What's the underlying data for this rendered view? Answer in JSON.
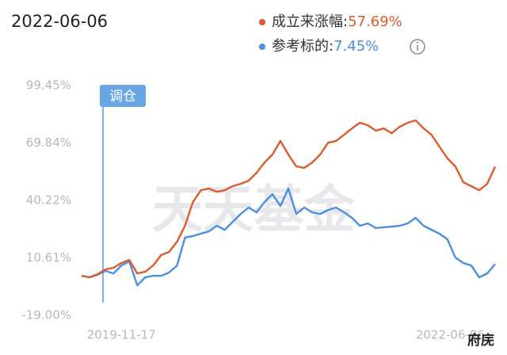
{
  "chart_data": {
    "type": "line",
    "date": "2022-06-06",
    "annotation": "调仓",
    "watermark": "天天基金",
    "signature": "府庑",
    "categories": [
      null,
      null,
      null,
      null,
      null,
      "2019-11-17",
      null,
      null,
      null,
      null,
      null,
      null,
      null,
      null,
      null,
      null,
      null,
      null,
      null,
      null,
      null,
      null,
      null,
      null,
      null,
      null,
      null,
      null,
      null,
      null,
      null,
      null,
      null,
      null,
      null,
      null,
      null,
      null,
      null,
      null,
      null,
      null,
      null,
      null,
      null,
      null,
      null,
      null,
      null,
      null,
      null,
      null,
      "2022-06-06"
    ],
    "series": [
      {
        "name": "成立来涨幅:",
        "value_label": "57.69%",
        "color": "#e05a2b",
        "values": [
          1.4,
          0.6,
          2.2,
          4.7,
          5.5,
          8,
          9.6,
          2.6,
          3.5,
          6.7,
          12.1,
          13.7,
          19,
          27.2,
          39.4,
          45.5,
          46.4,
          44.7,
          45.5,
          47.6,
          48.8,
          50.4,
          54.5,
          59.8,
          63.9,
          70.9,
          63.9,
          57.8,
          57,
          59.8,
          63.9,
          70,
          70.9,
          74.1,
          77.4,
          80.3,
          79,
          76.2,
          77.4,
          74.9,
          78.2,
          80.3,
          81.5,
          77.4,
          74.1,
          68,
          61.9,
          57.8,
          49.6,
          47.6,
          45.5,
          48.8,
          57.69
        ]
      },
      {
        "name": "参考标的:",
        "value_label": "7.45%",
        "color": "#4a8fe0",
        "values": [
          1.4,
          0.6,
          1.9,
          3.9,
          2.6,
          6.7,
          8.8,
          -3.5,
          0.6,
          1.4,
          1.4,
          3.1,
          6.7,
          21.1,
          21.9,
          23.1,
          24.3,
          27.2,
          25.1,
          29.2,
          33.3,
          36.6,
          34.1,
          39.4,
          43.5,
          37.4,
          46.4,
          33.3,
          36.6,
          34.1,
          33.3,
          35.3,
          36.6,
          34.1,
          31.3,
          27.2,
          28.4,
          26,
          26.4,
          26.8,
          27.2,
          28.4,
          31.3,
          27.2,
          25.1,
          23.1,
          20.2,
          10.8,
          8,
          6.7,
          0.6,
          2.6,
          7.45
        ]
      }
    ],
    "ylim": [
      -19.0,
      99.45
    ],
    "yticks": [
      {
        "value": 99.45,
        "label": "99.45%"
      },
      {
        "value": 69.84,
        "label": "69.84%"
      },
      {
        "value": 40.22,
        "label": "40.22%"
      },
      {
        "value": 10.61,
        "label": "10.61%"
      },
      {
        "value": -19.0,
        "label": "-19.00%"
      }
    ],
    "grid": false
  }
}
